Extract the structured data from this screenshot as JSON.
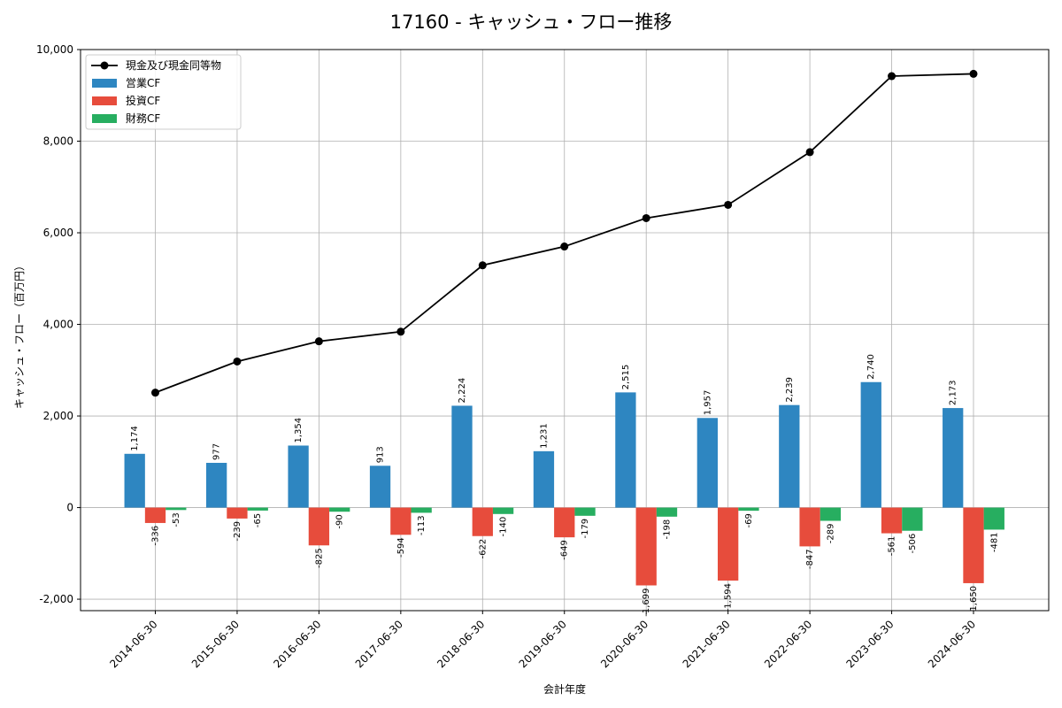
{
  "chart_data": {
    "type": "bar",
    "title": "17160 - キャッシュ・フロー推移",
    "xlabel": "会計年度",
    "ylabel": "キャッシュ・フロー（百万円）",
    "ylim": [
      -2250,
      10000
    ],
    "yticks": [
      -2000,
      0,
      2000,
      4000,
      6000,
      8000,
      10000
    ],
    "ytick_labels": [
      "-2,000",
      "0",
      "2,000",
      "4,000",
      "6,000",
      "8,000",
      "10,000"
    ],
    "grid": true,
    "legend_position": "top-left",
    "categories": [
      "2014-06-30",
      "2015-06-30",
      "2016-06-30",
      "2017-06-30",
      "2018-06-30",
      "2019-06-30",
      "2020-06-30",
      "2021-06-30",
      "2022-06-30",
      "2023-06-30",
      "2024-06-30"
    ],
    "series": [
      {
        "name": "営業CF",
        "color": "#2e86c1",
        "values": [
          1174,
          977,
          1354,
          913,
          2224,
          1231,
          2515,
          1957,
          2239,
          2740,
          2173
        ],
        "labels": [
          "1,174",
          "977",
          "1,354",
          "913",
          "2,224",
          "1,231",
          "2,515",
          "1,957",
          "2,239",
          "2,740",
          "2,173"
        ]
      },
      {
        "name": "投資CF",
        "color": "#e74c3c",
        "values": [
          -336,
          -239,
          -825,
          -594,
          -622,
          -649,
          -1699,
          -1594,
          -847,
          -561,
          -1650
        ],
        "labels": [
          "-336",
          "-239",
          "-825",
          "-594",
          "-622",
          "-649",
          "-1,699",
          "-1,594",
          "-847",
          "-561",
          "-1,650"
        ]
      },
      {
        "name": "財務CF",
        "color": "#27ae60",
        "values": [
          -53,
          -65,
          -90,
          -113,
          -140,
          -179,
          -198,
          -69,
          -289,
          -506,
          -481
        ],
        "labels": [
          "-53",
          "-65",
          "-90",
          "-113",
          "-140",
          "-179",
          "-198",
          "-69",
          "-289",
          "-506",
          "-481"
        ]
      }
    ],
    "line_series": {
      "name": "現金及び現金同等物",
      "color": "#000000",
      "values": [
        2510,
        3190,
        3630,
        3840,
        5290,
        5700,
        6320,
        6610,
        7760,
        9420,
        9470
      ]
    }
  }
}
